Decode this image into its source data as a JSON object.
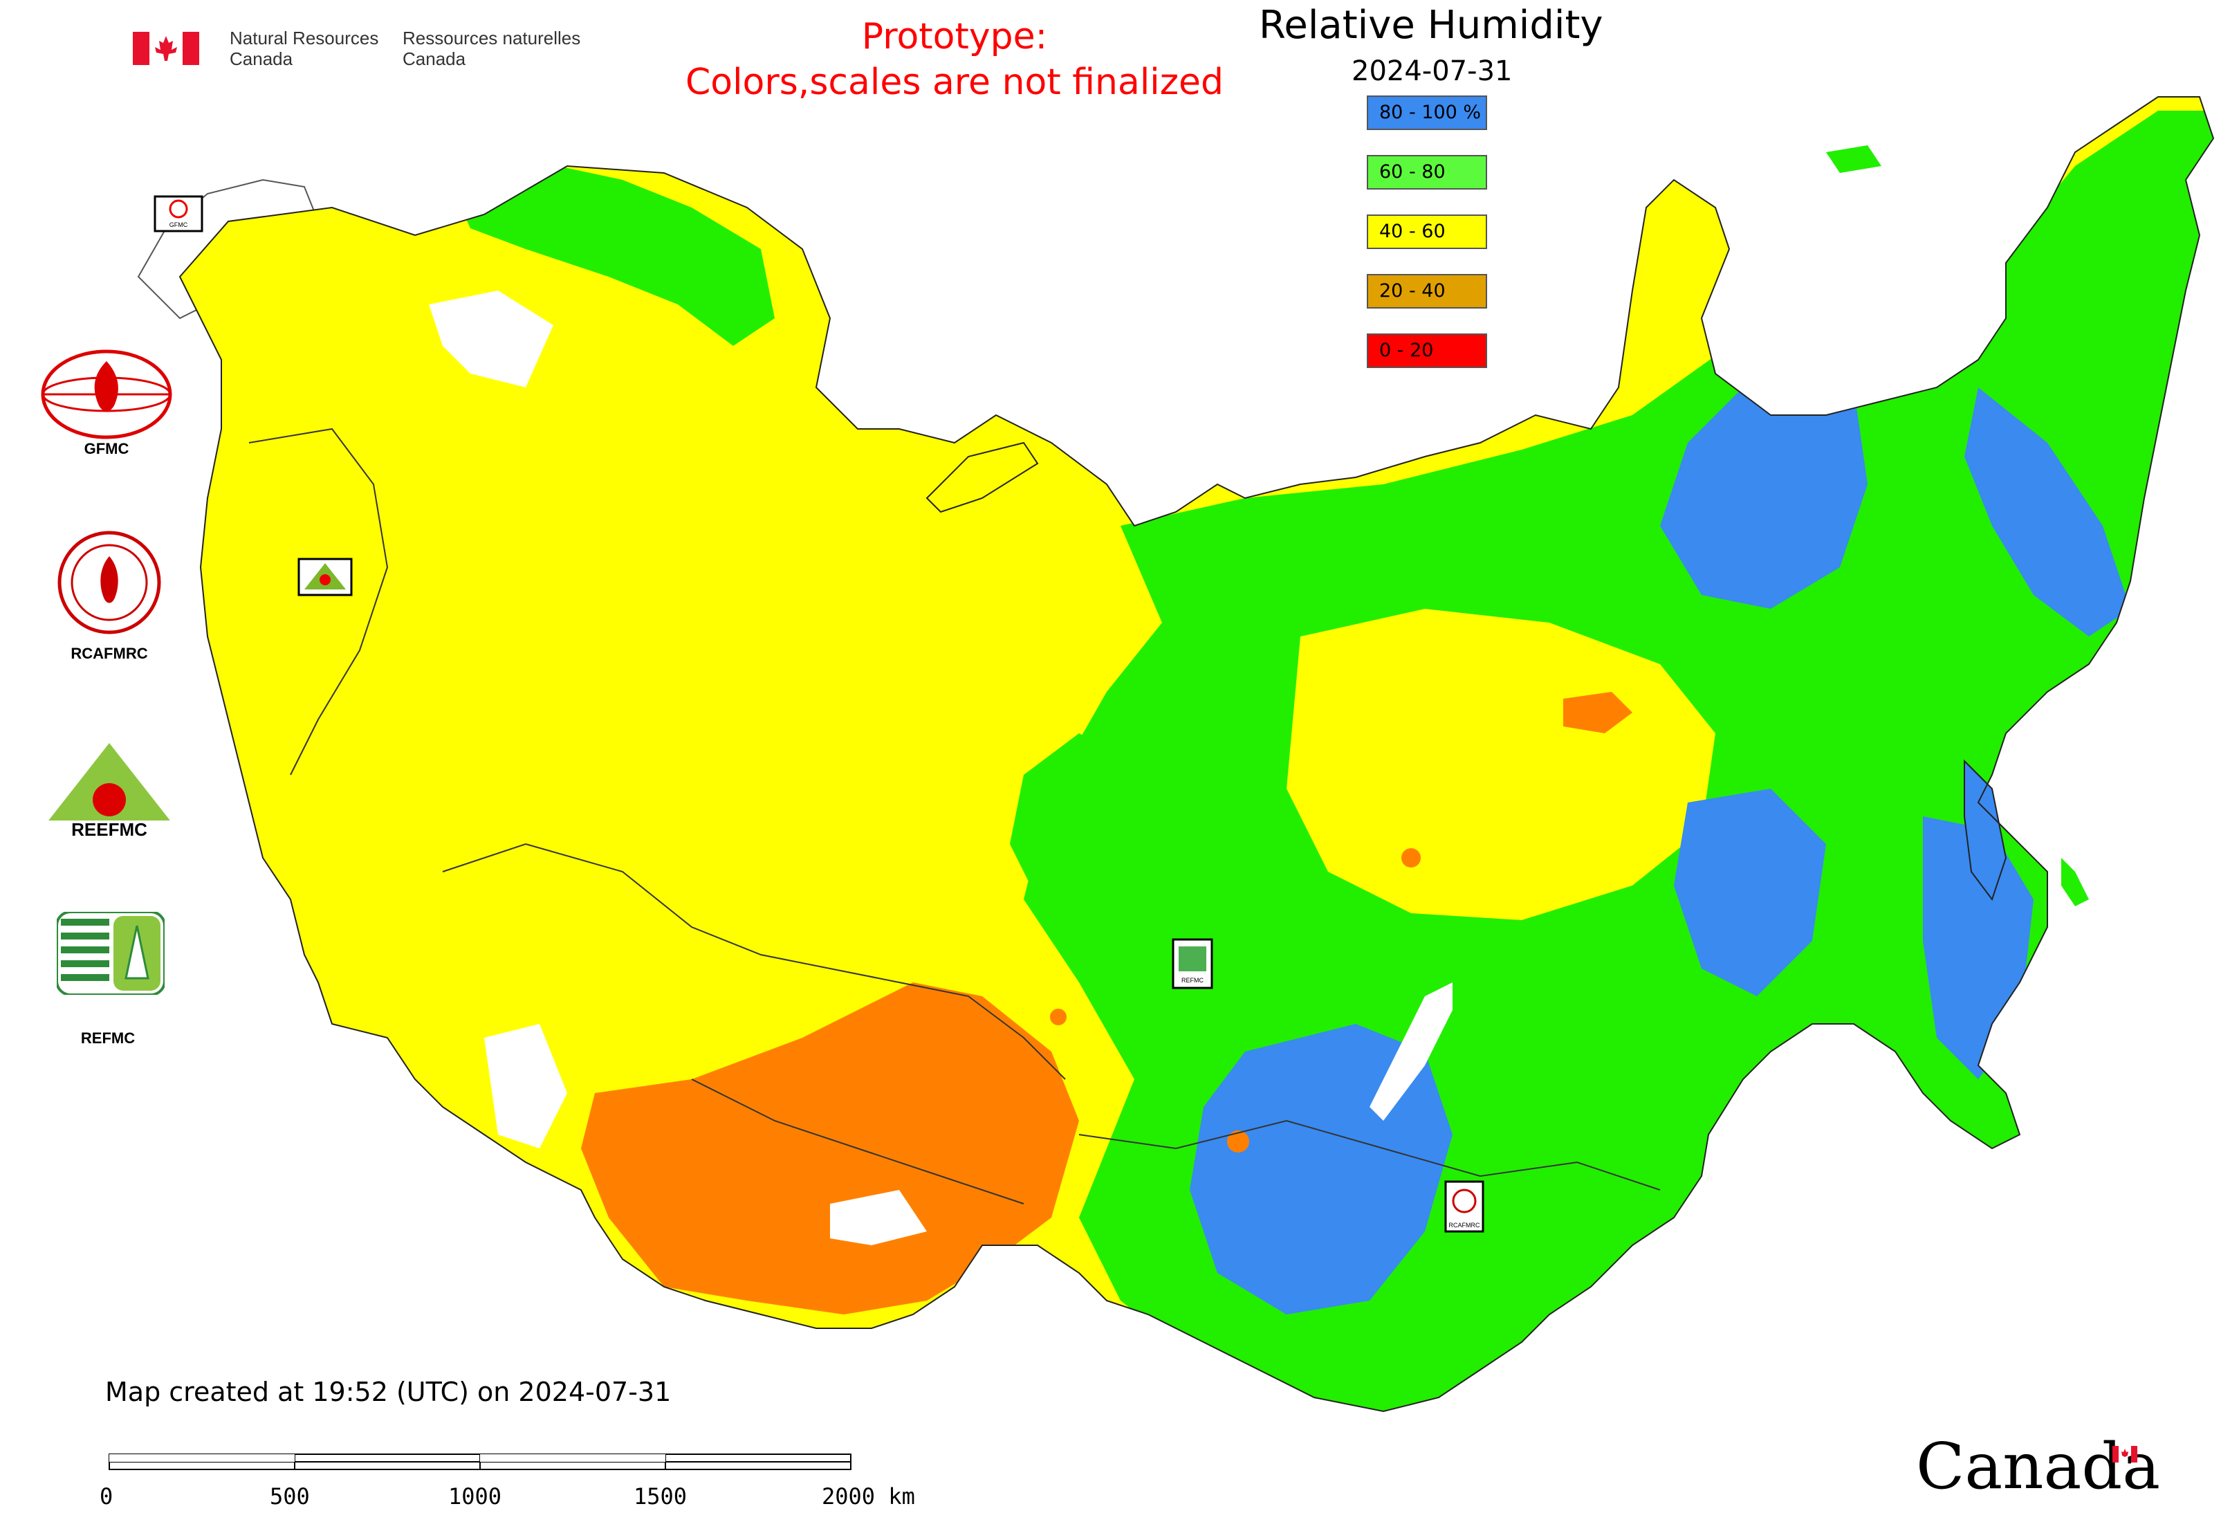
{
  "header": {
    "gov_en_line1": "Natural Resources",
    "gov_en_line2": "Canada",
    "gov_fr_line1": "Ressources naturelles",
    "gov_fr_line2": "Canada",
    "prototype_line1": "Prototype:",
    "prototype_line2": "Colors,scales are not finalized"
  },
  "map": {
    "title": "Relative Humidity",
    "date": "2024-07-31",
    "legend": [
      {
        "label": "80 - 100 %",
        "color": "#3a8af0"
      },
      {
        "label": "60 - 80",
        "color": "#5cfa3c"
      },
      {
        "label": "40 - 60",
        "color": "#ffff00"
      },
      {
        "label": "20 - 40",
        "color": "#e0a000"
      },
      {
        "label": "0 - 20",
        "color": "#ff0000"
      }
    ],
    "colors": {
      "high": "#3a8af0",
      "moist": "#22ee00",
      "mid": "#ffff00",
      "dry": "#ff8000",
      "very_dry": "#ff0000",
      "water": "#ffffff",
      "border": "#333333"
    },
    "marker_icons": [
      "gfmc-marker-icon",
      "reefmc-marker-icon",
      "refmc-marker-icon",
      "rcafmrc-marker-icon"
    ],
    "marker_labels": {
      "gfmc": "GFMC",
      "reefmc": "REEFMC",
      "refmc": "REFMC",
      "rcafmrc": "RCAFMRC"
    }
  },
  "sidebar": {
    "logos": [
      {
        "label": "GFMC",
        "icon": "gfmc-logo-icon"
      },
      {
        "label": "RCAFMRC",
        "icon": "rcafmrc-logo-icon"
      },
      {
        "label": "REEFMC",
        "icon": "reefmc-logo-icon"
      },
      {
        "label": "REFMC",
        "icon": "refmc-logo-icon"
      }
    ]
  },
  "footer": {
    "created": "Map created at 19:52 (UTC) on 2024-07-31",
    "scale_ticks": [
      "0",
      "500",
      "1000",
      "1500",
      "2000 km"
    ],
    "wordmark": "Canada"
  }
}
